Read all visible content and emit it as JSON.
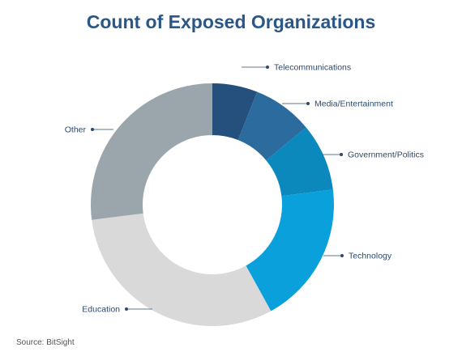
{
  "chart_data": {
    "type": "pie",
    "title": "Count of Exposed Organizations",
    "categories": [
      "Telecommunications",
      "Media/Entertainment",
      "Government/Politics",
      "Technology",
      "Education",
      "Other"
    ],
    "values": [
      6,
      8,
      9,
      19,
      31,
      27
    ],
    "colors": [
      "#254f7c",
      "#2b6b9e",
      "#0b89bd",
      "#0aa0dc",
      "#d9d9d9",
      "#9aa6ab"
    ],
    "donut": true,
    "legend": "none",
    "source": "Source: BitSight"
  }
}
